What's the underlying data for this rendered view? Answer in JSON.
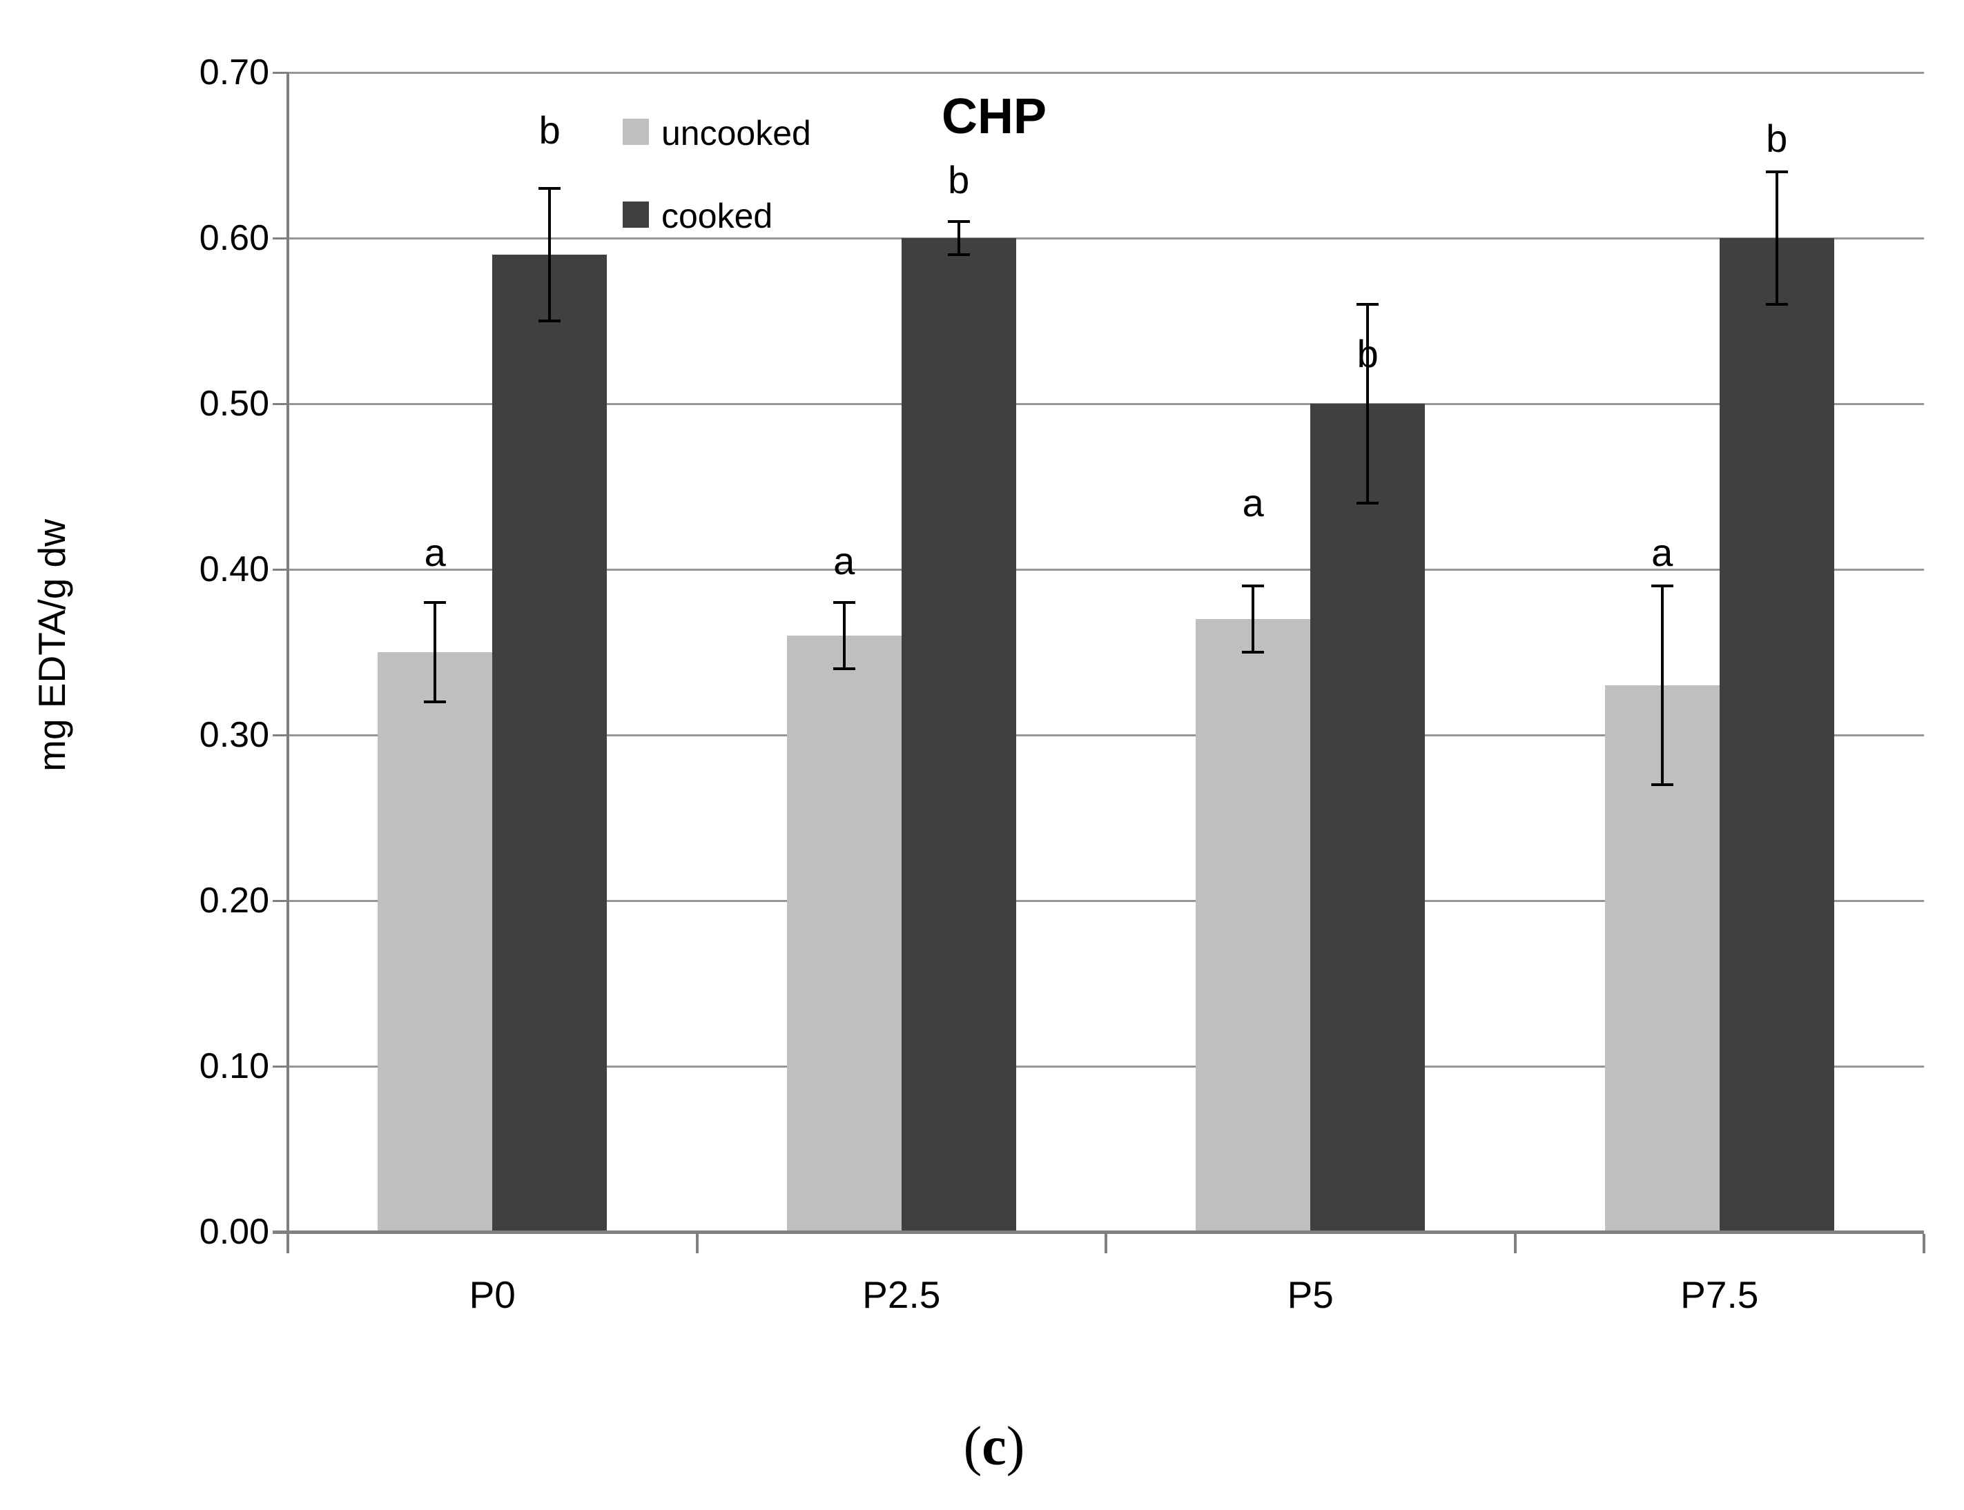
{
  "title": "CHP",
  "y_axis_title": "mg EDTA/g dw",
  "legend": {
    "items": [
      {
        "label": "uncooked",
        "color": "#BFBFBF"
      },
      {
        "label": "cooked",
        "color": "#404040"
      }
    ]
  },
  "caption": {
    "open": "(",
    "letter": "c",
    "close": ")"
  },
  "colors": {
    "uncooked": "#BFBFBF",
    "cooked": "#404040",
    "gridline": "#969696",
    "axis": "#808080",
    "error_bar": "#000000"
  },
  "chart_data": {
    "type": "bar",
    "title": "CHP",
    "categories": [
      "P0",
      "P2.5",
      "P5",
      "P7.5"
    ],
    "series": [
      {
        "name": "uncooked",
        "color": "#BFBFBF",
        "values": [
          0.35,
          0.36,
          0.37,
          0.33
        ],
        "error_low": [
          0.32,
          0.34,
          0.35,
          0.27
        ],
        "error_high": [
          0.38,
          0.38,
          0.39,
          0.39
        ],
        "sig_letters": [
          "a",
          "a",
          "a",
          "a"
        ],
        "sig_letter_y": [
          0.41,
          0.405,
          0.44,
          0.41
        ]
      },
      {
        "name": "cooked",
        "color": "#404040",
        "values": [
          0.59,
          0.6,
          0.5,
          0.6
        ],
        "error_low": [
          0.55,
          0.59,
          0.44,
          0.56
        ],
        "error_high": [
          0.63,
          0.61,
          0.56,
          0.64
        ],
        "sig_letters": [
          "b",
          "b",
          "b",
          "b"
        ],
        "sig_letter_y": [
          0.665,
          0.635,
          0.53,
          0.66
        ]
      }
    ],
    "xlabel": "",
    "ylabel": "mg EDTA/g dw",
    "ylim": [
      0.0,
      0.7
    ],
    "ytick_step": 0.1,
    "ytick_format_decimals": 2,
    "grid": true,
    "legend_position": "top-left-inside"
  }
}
